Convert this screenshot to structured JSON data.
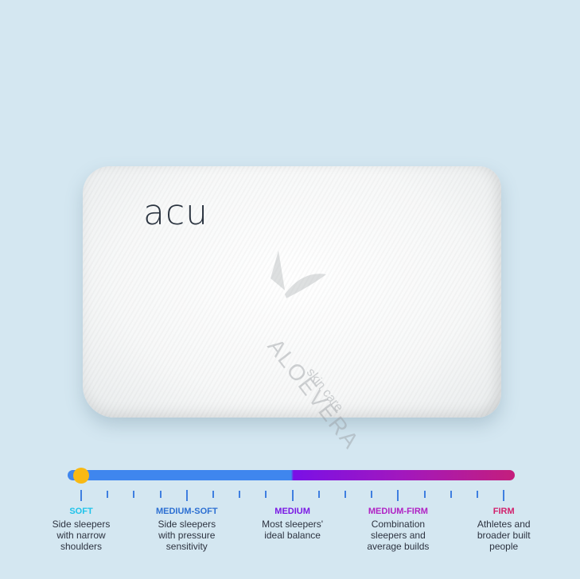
{
  "product": {
    "brand_logo": "acu",
    "watermark": "ALOEVERA",
    "watermark_sub": "skin care"
  },
  "firmness_scale": {
    "current_level": 0.03,
    "knob_color": "#f8b914",
    "levels": [
      {
        "title": "SOFT",
        "description": [
          "Side sleepers",
          "with narrow",
          "shoulders"
        ],
        "color": "#1ec3ea"
      },
      {
        "title": "MEDIUM-SOFT",
        "description": [
          "Side sleepers",
          "with pressure",
          "sensitivity"
        ],
        "color": "#2c6fd2"
      },
      {
        "title": "MEDIUM",
        "description": [
          "Most sleepers'",
          "ideal balance"
        ],
        "color": "#7a18e4"
      },
      {
        "title": "MEDIUM-FIRM",
        "description": [
          "Combination",
          "sleepers and",
          "average builds"
        ],
        "color": "#b022c4"
      },
      {
        "title": "FIRM",
        "description": [
          "Athletes and",
          "broader built",
          "people"
        ],
        "color": "#d2206c"
      }
    ]
  }
}
